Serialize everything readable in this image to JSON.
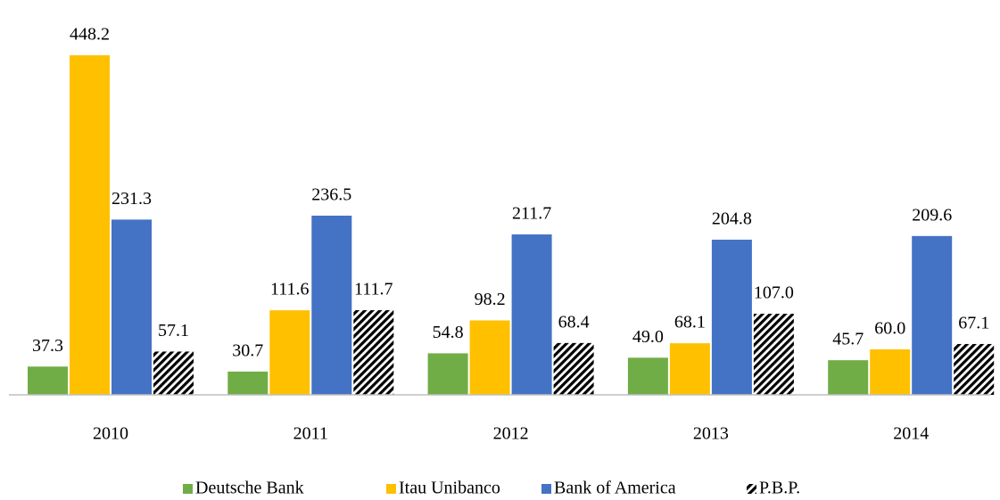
{
  "chart_data": {
    "type": "bar",
    "categories": [
      "2010",
      "2011",
      "2012",
      "2013",
      "2014"
    ],
    "series": [
      {
        "name": "Deutsche Bank",
        "color": "#70ad47",
        "values": [
          37.3,
          30.7,
          54.8,
          49.0,
          45.7
        ],
        "value_labels": [
          "37.3",
          "30.7",
          "54.8",
          "49.0",
          "45.7"
        ]
      },
      {
        "name": "Itau Unibanco",
        "color": "#ffc000",
        "values": [
          448.2,
          111.6,
          98.2,
          68.1,
          60.0
        ],
        "value_labels": [
          "448.2",
          "111.6",
          "98.2",
          "68.1",
          "60.0"
        ]
      },
      {
        "name": "Bank of America",
        "color": "#4472c4",
        "values": [
          231.3,
          236.5,
          211.7,
          204.8,
          209.6
        ],
        "value_labels": [
          "231.3",
          "236.5",
          "211.7",
          "204.8",
          "209.6"
        ]
      },
      {
        "name": "P.B.P.",
        "color": "#000000",
        "pattern": "hatch",
        "values": [
          57.1,
          111.7,
          68.4,
          107.0,
          67.1
        ],
        "value_labels": [
          "57.1",
          "111.7",
          "68.4",
          "107.0",
          "67.1"
        ]
      }
    ],
    "legend": "bottom"
  }
}
